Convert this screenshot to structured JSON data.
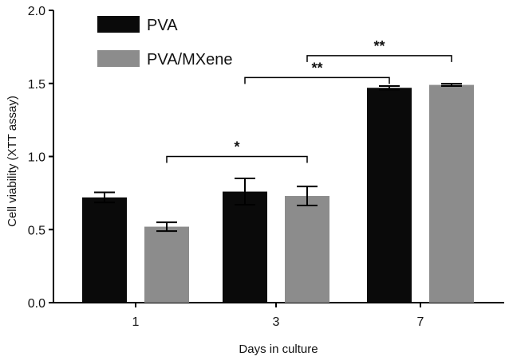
{
  "chart_data": {
    "type": "bar",
    "title": "",
    "xlabel": "Days in culture",
    "ylabel": "Cell viability (XTT assay)",
    "categories": [
      "1",
      "3",
      "7"
    ],
    "ylim": [
      0,
      2.0
    ],
    "yticks": [
      "0.0",
      "0.5",
      "1.0",
      "1.5",
      "2.0"
    ],
    "ytick_values": [
      0,
      0.5,
      1.0,
      1.5,
      2.0
    ],
    "series": [
      {
        "name": "PVA",
        "color": "#0a0a0a",
        "values": [
          0.72,
          0.76,
          1.47
        ],
        "errors": [
          0.035,
          0.09,
          0.012
        ]
      },
      {
        "name": "PVA/MXene",
        "color": "#8c8c8c",
        "values": [
          0.52,
          0.73,
          1.49
        ],
        "errors": [
          0.03,
          0.065,
          0.008
        ]
      }
    ],
    "legend_position": "top-left",
    "grid": false,
    "significance": [
      {
        "label": "*",
        "from": [
          0,
          1
        ],
        "to": [
          1,
          1
        ],
        "y": 1.0
      },
      {
        "label": "**",
        "from": [
          1,
          0
        ],
        "to": [
          2,
          0
        ],
        "y": 1.54
      },
      {
        "label": "**",
        "from": [
          1,
          1
        ],
        "to": [
          2,
          1
        ],
        "y": 1.69
      }
    ]
  }
}
